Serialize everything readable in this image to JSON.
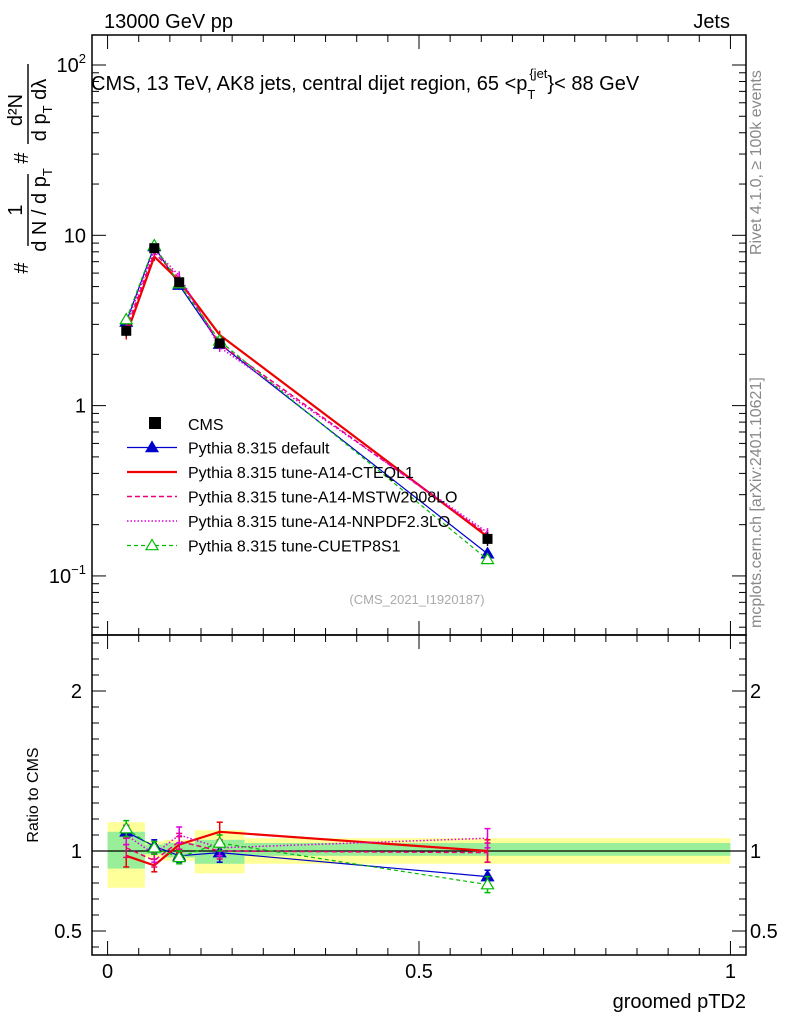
{
  "header": {
    "energy": "13000 GeV pp",
    "category": "Jets",
    "rivet": "Rivet 4.1.0, ≥ 100k events",
    "mcplots": "mcplots.cern.ch [arXiv:2401.10621]",
    "analysis_id": "(CMS_2021_I1920187)"
  },
  "chart_data": {
    "type": "line",
    "title": "CMS, 13 TeV, AK8 jets, central dijet region, 65 <p_T^{jet}< 88 GeV",
    "title_parts": {
      "main": "CMS, 13 TeV, AK8 jets, central dijet region, 65 <p",
      "sub": "T",
      "sup": "{jet",
      "end": "}< 88 GeV"
    },
    "ylabel_parts": {
      "num1": "1",
      "den1": "d N / d p",
      "den1_sub": "T",
      "num2": "d²N",
      "den2": "d p",
      "den2_sub": "T",
      "den2_tail": " dλ",
      "hash": "#"
    },
    "xlabel": "groomed pTD2",
    "ratio_ylabel": "Ratio to CMS",
    "xlim": [
      -0.025,
      1.025
    ],
    "main_ylim": [
      0.045,
      150
    ],
    "main_yscale": "log",
    "main_yticks": [
      {
        "v": 0.1,
        "base": "10",
        "exp": "−1"
      },
      {
        "v": 1,
        "label": "1"
      },
      {
        "v": 10,
        "label": "10"
      },
      {
        "v": 100,
        "base": "10",
        "exp": "2"
      }
    ],
    "ratio_ylim": [
      0.35,
      2.35
    ],
    "ratio_yticks": [
      {
        "v": 0.5,
        "label": "0.5"
      },
      {
        "v": 1,
        "label": "1"
      },
      {
        "v": 2,
        "label": "2"
      }
    ],
    "xticks": [
      {
        "v": 0,
        "label": "0"
      },
      {
        "v": 0.5,
        "label": "0.5"
      },
      {
        "v": 1,
        "label": "1"
      }
    ],
    "bins": [
      [
        0,
        0.06
      ],
      [
        0.06,
        0.09
      ],
      [
        0.09,
        0.14
      ],
      [
        0.14,
        0.22
      ],
      [
        0.22,
        1.0
      ]
    ],
    "band_inner": [
      [
        0.89,
        1.12
      ],
      [
        0.98,
        1.04
      ],
      [
        0.96,
        1.05
      ],
      [
        0.92,
        1.07
      ],
      [
        0.97,
        1.05
      ]
    ],
    "band_outer": [
      [
        0.77,
        1.18
      ],
      [
        0.96,
        1.06
      ],
      [
        0.94,
        1.07
      ],
      [
        0.86,
        1.13
      ],
      [
        0.92,
        1.08
      ]
    ],
    "data_x": [
      0.03,
      0.075,
      0.115,
      0.18,
      0.61
    ],
    "data_y": [
      2.75,
      8.4,
      5.3,
      2.32,
      0.165
    ],
    "data_err": [
      0.2,
      0.3,
      0.2,
      0.1,
      0.015
    ],
    "series": [
      {
        "name": "Pythia 8.315 default",
        "color": "#0000cc",
        "dash": "",
        "width": 1.2,
        "marker": "triangle-filled",
        "y": [
          3.1,
          8.6,
          5.1,
          2.3,
          0.135
        ],
        "ratio": [
          1.12,
          1.03,
          0.97,
          0.99,
          0.84
        ],
        "ratio_err": [
          0.04,
          0.04,
          0.04,
          0.06,
          0.04
        ]
      },
      {
        "name": "Pythia 8.315 tune-A14-CTEQL1",
        "color": "#ee0000",
        "dash": "",
        "width": 2.2,
        "marker": "none",
        "y": [
          2.6,
          7.5,
          5.4,
          2.6,
          0.17
        ],
        "ratio": [
          0.97,
          0.91,
          1.04,
          1.12,
          1.0
        ],
        "ratio_err": [
          0.07,
          0.04,
          0.05,
          0.06,
          0.07
        ]
      },
      {
        "name": "Pythia 8.315 tune-A14-MSTW2008LO",
        "color": "#ee0077",
        "dash": "5,3",
        "width": 1.5,
        "marker": "none",
        "y": [
          2.8,
          7.9,
          5.6,
          2.3,
          0.175
        ],
        "ratio": [
          1.02,
          0.94,
          1.06,
          1.0,
          0.99
        ],
        "ratio_err": [
          0.06,
          0.04,
          0.05,
          0.05,
          0.06
        ]
      },
      {
        "name": "Pythia 8.315 tune-A14-NNPDF2.3LO",
        "color": "#dd00dd",
        "dash": "1.5,2",
        "width": 1.5,
        "marker": "none",
        "y": [
          3.0,
          8.2,
          5.8,
          2.2,
          0.18
        ],
        "ratio": [
          1.1,
          0.98,
          1.1,
          1.02,
          1.08
        ],
        "ratio_err": [
          0.06,
          0.05,
          0.05,
          0.05,
          0.06
        ]
      },
      {
        "name": "Pythia 8.315 tune-CUETP8S1",
        "color": "#00bb00",
        "dash": "4,3",
        "width": 1.2,
        "marker": "triangle-open",
        "y": [
          3.2,
          8.7,
          5.2,
          2.4,
          0.125
        ],
        "ratio": [
          1.14,
          1.02,
          0.96,
          1.05,
          0.79
        ],
        "ratio_err": [
          0.05,
          0.04,
          0.04,
          0.05,
          0.05
        ]
      }
    ],
    "legend": {
      "data_label": "CMS",
      "position": "lower-left"
    }
  }
}
